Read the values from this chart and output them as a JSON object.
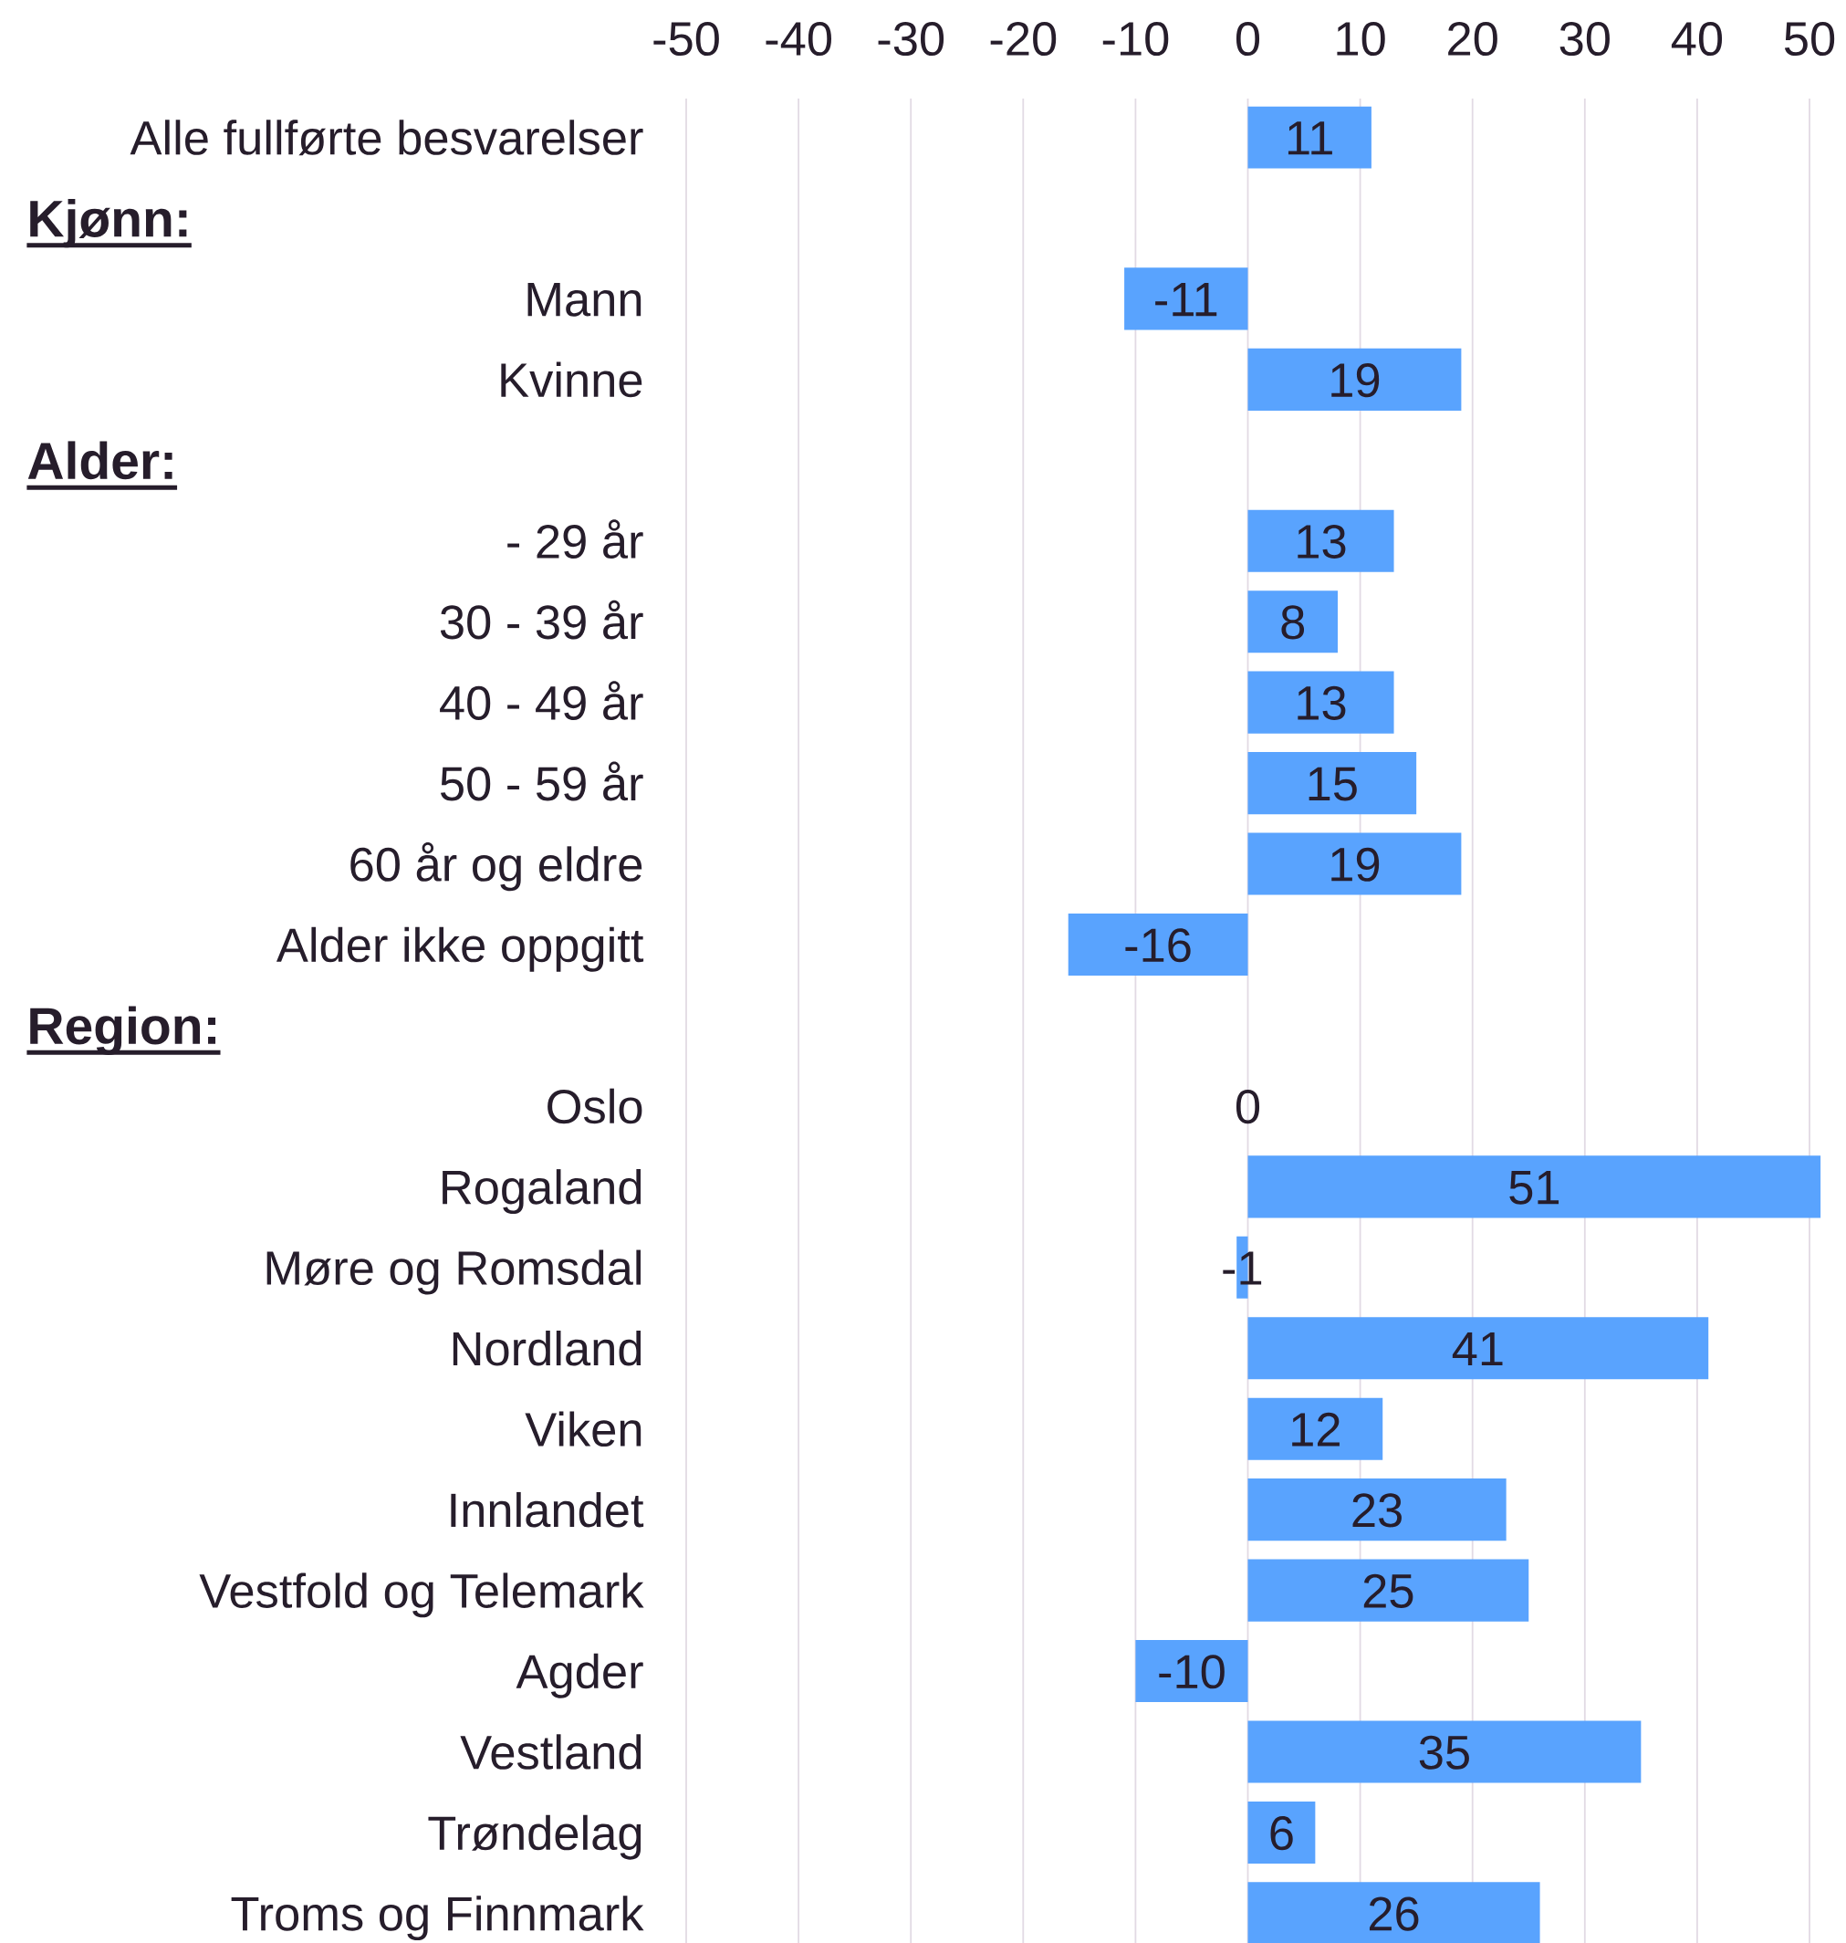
{
  "chart_data": {
    "type": "bar",
    "orientation": "horizontal",
    "categories": [
      "Alle fullførte besvarelser",
      null,
      "Mann",
      "Kvinne",
      null,
      "- 29 år",
      "30 - 39 år",
      "40 - 49 år",
      "50 - 59 år",
      "60 år og eldre",
      "Alder ikke oppgitt",
      null,
      "Oslo",
      "Rogaland",
      "Møre og Romsdal",
      "Nordland",
      "Viken",
      "Innlandet",
      "Vestfold og Telemark",
      "Agder",
      "Vestland",
      "Trøndelag",
      "Troms og Finnmark"
    ],
    "values": [
      11,
      null,
      -11,
      19,
      null,
      13,
      8,
      13,
      15,
      19,
      -16,
      null,
      0,
      51,
      -1,
      41,
      12,
      23,
      25,
      -10,
      35,
      6,
      26
    ],
    "annotations": [
      "Kjønn:",
      "Alder:",
      "Region:"
    ],
    "color": "#59a3fe",
    "xlim": [
      -50,
      51
    ],
    "xticks": [
      -50,
      -40,
      -30,
      -20,
      -10,
      0,
      10,
      20,
      30,
      40,
      50
    ],
    "grid": "x",
    "data_labels": true
  }
}
